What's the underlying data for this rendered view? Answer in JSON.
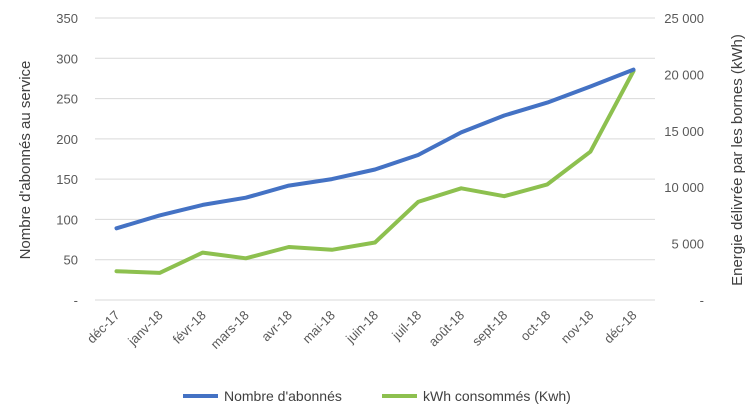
{
  "chart_data": {
    "type": "line",
    "categories": [
      "déc-17",
      "janv-18",
      "févr-18",
      "mars-18",
      "avr-18",
      "mai-18",
      "juin-18",
      "juil-18",
      "août-18",
      "sept-18",
      "oct-18",
      "nov-18",
      "déc-18"
    ],
    "series": [
      {
        "name": "Nombre d'abonnés",
        "axis": "left",
        "color": "#4472C4",
        "values": [
          89,
          105,
          118,
          127,
          142,
          150,
          162,
          180,
          208,
          229,
          245,
          265,
          286
        ]
      },
      {
        "name": "kWh consommés (Kwh)",
        "axis": "right",
        "color": "#8DC04F",
        "values": [
          2550,
          2400,
          4200,
          3700,
          4700,
          4450,
          5100,
          8700,
          9900,
          9200,
          10250,
          13150,
          20300
        ]
      }
    ],
    "ylabel_left": "Nombre d'abonnés au service",
    "ylabel_right": "Energie délivrée par les bornes (kWh)",
    "ylim_left": [
      0,
      350
    ],
    "ylim_right": [
      0,
      25000
    ],
    "yticks_left": [
      "-",
      "50",
      "100",
      "150",
      "200",
      "250",
      "300",
      "350"
    ],
    "yticks_right": [
      "-",
      "5 000",
      "10 000",
      "15 000",
      "20 000",
      "25 000"
    ],
    "grid": true,
    "legend_position": "bottom"
  }
}
